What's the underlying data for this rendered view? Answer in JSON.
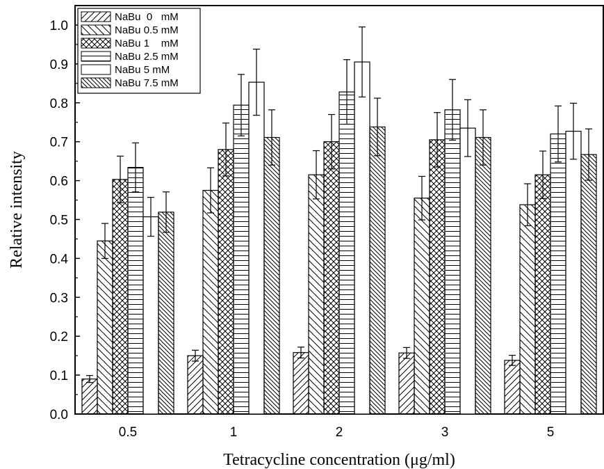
{
  "chart_data": {
    "type": "bar",
    "xlabel": "Tetracycline concentration (μg/ml)",
    "ylabel": "Relative intensity",
    "ylim": [
      0,
      1.05
    ],
    "yticks": [
      0.0,
      0.1,
      0.2,
      0.3,
      0.4,
      0.5,
      0.6,
      0.7,
      0.8,
      0.9,
      1.0
    ],
    "ytick_labels": [
      "0.0",
      "0.1",
      "0.2",
      "0.3",
      "0.4",
      "0.5",
      "0.6",
      "0.7",
      "0.8",
      "0.9",
      "1.0"
    ],
    "categories": [
      "0.5",
      "1",
      "2",
      "3",
      "5"
    ],
    "grid": false,
    "legend_position": "top-left",
    "error_bars": true,
    "series": [
      {
        "name": "NaBu  0   mM",
        "pattern": "forward-diagonal",
        "values": [
          0.09,
          0.15,
          0.158,
          0.157,
          0.138
        ],
        "errors": [
          0.009,
          0.014,
          0.014,
          0.014,
          0.013
        ]
      },
      {
        "name": "NaBu 0.5 mM",
        "pattern": "back-diagonal",
        "values": [
          0.445,
          0.575,
          0.615,
          0.555,
          0.538
        ],
        "errors": [
          0.045,
          0.058,
          0.062,
          0.056,
          0.054
        ]
      },
      {
        "name": "NaBu 1    mM",
        "pattern": "crosshatch",
        "values": [
          0.603,
          0.68,
          0.7,
          0.705,
          0.615
        ],
        "errors": [
          0.06,
          0.068,
          0.07,
          0.07,
          0.061
        ]
      },
      {
        "name": "NaBu 2.5 mM",
        "pattern": "horizontal",
        "values": [
          0.634,
          0.794,
          0.828,
          0.782,
          0.72
        ],
        "errors": [
          0.063,
          0.079,
          0.083,
          0.078,
          0.072
        ]
      },
      {
        "name": "NaBu 5 mM",
        "pattern": "none",
        "values": [
          0.507,
          0.853,
          0.905,
          0.735,
          0.727
        ],
        "errors": [
          0.05,
          0.085,
          0.09,
          0.073,
          0.072
        ]
      },
      {
        "name": "NaBu 7.5 mM",
        "pattern": "dense-back-diagonal",
        "values": [
          0.519,
          0.711,
          0.738,
          0.711,
          0.667
        ],
        "errors": [
          0.052,
          0.071,
          0.074,
          0.071,
          0.066
        ]
      }
    ]
  }
}
